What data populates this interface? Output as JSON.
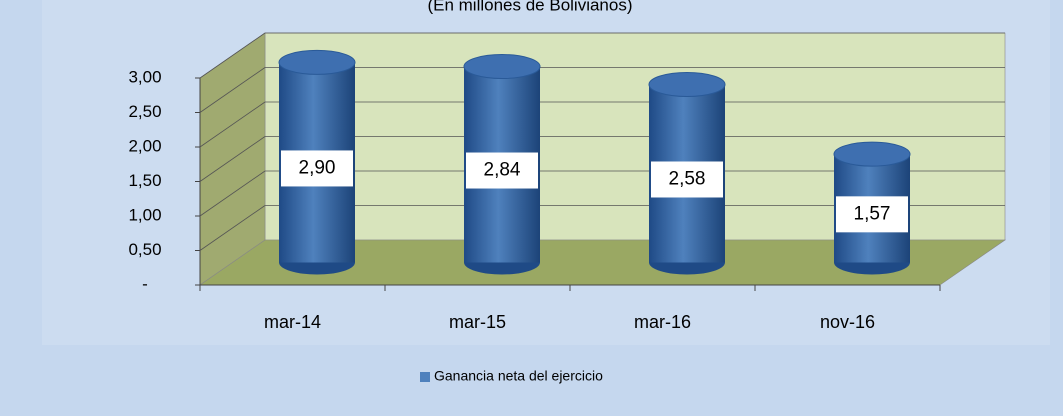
{
  "chart_data": {
    "type": "bar",
    "subtitle": "(En millones de Bolivianos)",
    "categories": [
      "mar-14",
      "mar-15",
      "mar-16",
      "nov-16"
    ],
    "series": [
      {
        "name": "Ganancia neta del ejercicio",
        "color": "#4f81bd",
        "values": [
          2.9,
          2.84,
          2.58,
          1.57
        ],
        "value_labels": [
          "2,90",
          "2,84",
          "2,58",
          "1,57"
        ]
      }
    ],
    "ylim": [
      0,
      3
    ],
    "yticks": [
      {
        "value": 0,
        "label": "-"
      },
      {
        "value": 0.5,
        "label": "0,50"
      },
      {
        "value": 1,
        "label": "1,00"
      },
      {
        "value": 1.5,
        "label": "1,50"
      },
      {
        "value": 2,
        "label": "2,00"
      },
      {
        "value": 2.5,
        "label": "2,50"
      },
      {
        "value": 3,
        "label": "3,00"
      }
    ],
    "grid": true,
    "legend": "bottom"
  }
}
